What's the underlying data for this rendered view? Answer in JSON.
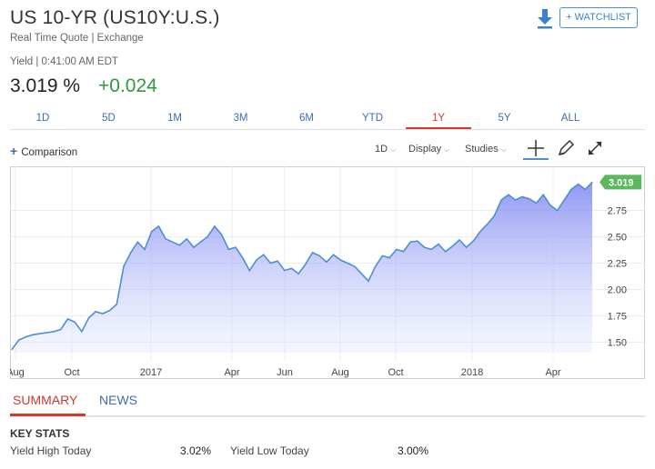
{
  "header": {
    "title": "US 10-YR (US10Y:U.S.)",
    "subtitle": "Real Time Quote | Exchange",
    "yield_time": "Yield | 0:41:00 AM EDT",
    "price": "3.019 %",
    "change": "+0.024",
    "watchlist_label": "+ WATCHLIST",
    "download_icon": "download-icon"
  },
  "range_tabs": [
    {
      "label": "1D",
      "active": false
    },
    {
      "label": "5D",
      "active": false
    },
    {
      "label": "1M",
      "active": false
    },
    {
      "label": "3M",
      "active": false
    },
    {
      "label": "6M",
      "active": false
    },
    {
      "label": "YTD",
      "active": false
    },
    {
      "label": "1Y",
      "active": true
    },
    {
      "label": "5Y",
      "active": false
    },
    {
      "label": "ALL",
      "active": false
    }
  ],
  "toolbar": {
    "comparison_label": "Comparison",
    "interval_label": "1D",
    "display_label": "Display",
    "studies_label": "Studies"
  },
  "colors": {
    "accent": "#d03a2c",
    "link": "#3b6fb0",
    "line": "#4a8fd8",
    "last_badge": "#5cb85c"
  },
  "chart_data": {
    "type": "area",
    "x_tick_labels": [
      "Aug",
      "Oct",
      "2017",
      "Apr",
      "Jun",
      "Aug",
      "Oct",
      "2018",
      "Apr"
    ],
    "y_tick_labels": [
      "1.50",
      "1.75",
      "2.00",
      "2.25",
      "2.50",
      "2.75"
    ],
    "ylim": [
      1.4,
      3.1
    ],
    "last_value_label": "3.019",
    "values": [
      1.43,
      1.52,
      1.55,
      1.57,
      1.58,
      1.59,
      1.6,
      1.62,
      1.72,
      1.69,
      1.6,
      1.73,
      1.79,
      1.77,
      1.8,
      1.86,
      2.22,
      2.35,
      2.45,
      2.38,
      2.55,
      2.6,
      2.48,
      2.45,
      2.42,
      2.48,
      2.4,
      2.45,
      2.5,
      2.6,
      2.52,
      2.38,
      2.4,
      2.3,
      2.18,
      2.28,
      2.33,
      2.25,
      2.27,
      2.18,
      2.2,
      2.15,
      2.24,
      2.35,
      2.32,
      2.26,
      2.33,
      2.28,
      2.25,
      2.22,
      2.15,
      2.08,
      2.22,
      2.32,
      2.3,
      2.38,
      2.36,
      2.45,
      2.46,
      2.4,
      2.38,
      2.43,
      2.36,
      2.41,
      2.47,
      2.4,
      2.46,
      2.55,
      2.62,
      2.7,
      2.85,
      2.9,
      2.85,
      2.88,
      2.86,
      2.82,
      2.9,
      2.8,
      2.75,
      2.85,
      2.95,
      3.0,
      2.95,
      3.019
    ],
    "grid": true,
    "area_fill": true
  },
  "summary": {
    "summary_tab": "SUMMARY",
    "news_tab": "NEWS",
    "key_stats_heading": "KEY STATS",
    "yield_high_label": "Yield High Today",
    "yield_high_value": "3.02%",
    "yield_low_label": "Yield Low Today",
    "yield_low_value": "3.00%"
  }
}
